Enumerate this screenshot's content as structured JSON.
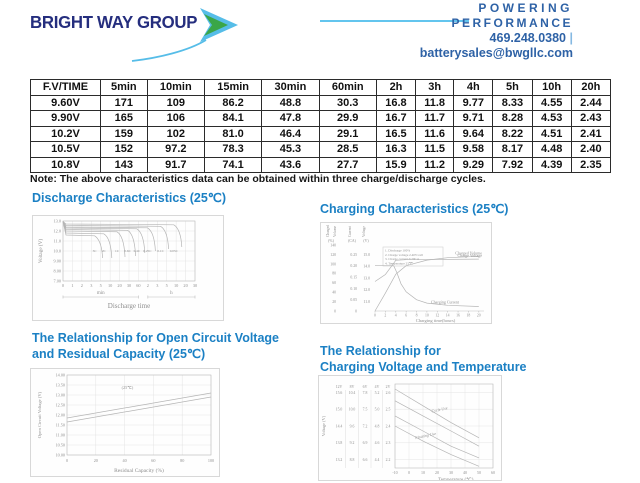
{
  "header": {
    "logo_text": "BRIGHT WAY GROUP",
    "tagline_line1": "POWERING",
    "tagline_line2": "PERFORMANCE",
    "phone": "469.248.0380",
    "pipe": "|",
    "email": "batterysales@bwgllc.com",
    "colors": {
      "logo_navy": "#252e7e",
      "chevron_blue": "#56bde8",
      "chevron_green": "#3aa648",
      "text_blue": "#2e62a6",
      "rule_blue": "#63c5ee"
    }
  },
  "table": {
    "headers": [
      "F.V/TIME",
      "5min",
      "10min",
      "15min",
      "30min",
      "60min",
      "2h",
      "3h",
      "4h",
      "5h",
      "10h",
      "20h"
    ],
    "rows": [
      [
        "9.60V",
        "171",
        "109",
        "86.2",
        "48.8",
        "30.3",
        "16.8",
        "11.8",
        "9.77",
        "8.33",
        "4.55",
        "2.44"
      ],
      [
        "9.90V",
        "165",
        "106",
        "84.1",
        "47.8",
        "29.9",
        "16.7",
        "11.7",
        "9.71",
        "8.28",
        "4.53",
        "2.43"
      ],
      [
        "10.2V",
        "159",
        "102",
        "81.0",
        "46.4",
        "29.1",
        "16.5",
        "11.6",
        "9.64",
        "8.22",
        "4.51",
        "2.41"
      ],
      [
        "10.5V",
        "152",
        "97.2",
        "78.3",
        "45.3",
        "28.5",
        "16.3",
        "11.5",
        "9.58",
        "8.17",
        "4.48",
        "2.40"
      ],
      [
        "10.8V",
        "143",
        "91.7",
        "74.1",
        "43.6",
        "27.7",
        "15.9",
        "11.2",
        "9.29",
        "7.92",
        "4.39",
        "2.35"
      ]
    ]
  },
  "note": "Note: The above characteristics data can be obtained within three charge/discharge cycles.",
  "section_titles": {
    "discharge": "Discharge Characteristics (25℃)",
    "charging": "Charging Characteristics (25℃)",
    "ocv_line1": "The Relationship for Open Circuit Voltage",
    "ocv_line2": "and Residual Capacity (25℃)",
    "temp_line1": "The Relationship for",
    "temp_line2": "Charging Voltage and Temperature"
  },
  "chart_data": [
    {
      "id": "discharge",
      "type": "line",
      "title": "Discharge Characteristics (25℃)",
      "xlabel": "Discharge time",
      "ylabel": "Voltage (V)",
      "ytick_labels": [
        "13.0",
        "12.0",
        "11.0",
        "10.0",
        "9.00",
        "8.00",
        "7.00"
      ],
      "yticks": [
        13.0,
        12.0,
        11.0,
        10.0,
        9.0,
        8.0,
        7.0
      ],
      "xtick_labels": [
        "0",
        "1",
        "2",
        "3",
        "5",
        "10",
        "20",
        "30",
        "60",
        "2",
        "3",
        "5",
        "10",
        "20",
        "30"
      ],
      "x_units": [
        {
          "label": "min",
          "from_tick": 0,
          "to_tick": 8
        },
        {
          "label": "h",
          "from_tick": 9,
          "to_tick": 14
        }
      ],
      "series": [
        {
          "name": "3C",
          "plateau_v": 11.6,
          "end_fraction": 0.3,
          "end_v": 9.3
        },
        {
          "name": "2C",
          "plateau_v": 11.8,
          "end_fraction": 0.37,
          "end_v": 9.3
        },
        {
          "name": "1C",
          "plateau_v": 12.0,
          "end_fraction": 0.47,
          "end_v": 9.4
        },
        {
          "name": "0.6C",
          "plateau_v": 12.15,
          "end_fraction": 0.55,
          "end_v": 9.5
        },
        {
          "name": "0.4C",
          "plateau_v": 12.3,
          "end_fraction": 0.62,
          "end_v": 9.8
        },
        {
          "name": "0.25C",
          "plateau_v": 12.4,
          "end_fraction": 0.7,
          "end_v": 10.0
        },
        {
          "name": "0.1C",
          "plateau_v": 12.55,
          "end_fraction": 0.8,
          "end_v": 10.2
        },
        {
          "name": "0.05C",
          "plateau_v": 12.7,
          "end_fraction": 0.9,
          "end_v": 10.4
        }
      ]
    },
    {
      "id": "charging",
      "type": "line",
      "title": "Charging Characteristics (25℃)",
      "xlabel": "Charging time(hours)",
      "xticks": [
        0,
        2,
        4,
        6,
        8,
        10,
        12,
        14,
        16,
        18,
        20
      ],
      "axes": [
        {
          "name": "Charged Volume",
          "unit": "(%)",
          "ticks": [
            "140",
            "120",
            "100",
            "80",
            "60",
            "40",
            "20",
            "0"
          ]
        },
        {
          "name": "Current",
          "unit": "(CA)",
          "ticks": [
            "0.25",
            "0.20",
            "0.15",
            "0.10",
            "0.05",
            "0"
          ]
        },
        {
          "name": "Voltage",
          "unit": "(V)",
          "ticks": [
            "15.0",
            "14.0",
            "13.0",
            "12.0",
            "11.0"
          ]
        }
      ],
      "legend": [
        "1. Discharge 100%",
        "2. Charge voltage 2.40V/cell",
        "3. Charge current 0.20CA",
        "4. Temperature 25℃"
      ],
      "series": [
        {
          "name": "Charged Volume",
          "axis": "%",
          "points": [
            [
              0,
              0
            ],
            [
              2,
              38
            ],
            [
              4,
              78
            ],
            [
              6,
              96
            ],
            [
              10,
              108
            ],
            [
              14,
              113
            ],
            [
              20,
              116
            ]
          ]
        },
        {
          "name": "Charge Voltage",
          "axis": "V",
          "points": [
            [
              0,
              12.7
            ],
            [
              2,
              13.3
            ],
            [
              3.5,
              14.2
            ],
            [
              4,
              14.5
            ],
            [
              6,
              14.55
            ],
            [
              20,
              14.6
            ]
          ]
        },
        {
          "name": "Charging Current",
          "axis": "CA",
          "points": [
            [
              0,
              0.2
            ],
            [
              3.6,
              0.2
            ],
            [
              4.2,
              0.17
            ],
            [
              5,
              0.12
            ],
            [
              6,
              0.085
            ],
            [
              8,
              0.05
            ],
            [
              10,
              0.035
            ],
            [
              14,
              0.025
            ],
            [
              20,
              0.02
            ]
          ]
        }
      ]
    },
    {
      "id": "ocv",
      "type": "line",
      "title": "The Relationship for Open Circuit Voltage and Residual Capacity (25℃)",
      "xlabel": "Residual Capacity (%)",
      "ylabel": "Open Circuit Voltage (V)",
      "annotation": "(25℃)",
      "ytick_labels": [
        "14.00",
        "13.50",
        "13.00",
        "12.50",
        "12.00",
        "11.50",
        "11.00",
        "10.50",
        "10.00"
      ],
      "xtick_labels": [
        "0",
        "20",
        "40",
        "60",
        "80",
        "100"
      ],
      "xlim": [
        0,
        100
      ],
      "ylim": [
        10.0,
        14.0
      ],
      "series": [
        {
          "name": "upper line",
          "points": [
            [
              0,
              11.85
            ],
            [
              100,
              13.1
            ]
          ]
        },
        {
          "name": "lower line",
          "points": [
            [
              0,
              11.65
            ],
            [
              100,
              12.9
            ]
          ]
        }
      ]
    },
    {
      "id": "charge-temp",
      "type": "line",
      "title": "The Relationship for Charging Voltage and Temperature",
      "xlabel": "Temperature (℃)",
      "ylabel": "Voltage (V)",
      "scale_headers": [
        "12V",
        "8V",
        "6V",
        "4V",
        "2V"
      ],
      "scale_rows": [
        [
          "15.6",
          "10.4",
          "7.8",
          "5.2",
          "2.6"
        ],
        [
          "15.0",
          "10.0",
          "7.5",
          "5.0",
          "2.5"
        ],
        [
          "14.4",
          "9.6",
          "7.2",
          "4.8",
          "2.4"
        ],
        [
          "13.8",
          "9.2",
          "6.9",
          "4.6",
          "2.3"
        ],
        [
          "13.2",
          "8.8",
          "6.6",
          "4.4",
          "2.2"
        ]
      ],
      "xtick_labels": [
        "-10",
        "0",
        "10",
        "20",
        "30",
        "40",
        "50",
        "60"
      ],
      "xlim": [
        -10,
        60
      ],
      "y_range_2v": [
        2.15,
        2.65
      ],
      "bands": [
        {
          "name": "Cycle Use",
          "lines": [
            [
              [
                -10,
                2.62
              ],
              [
                10,
                2.52
              ],
              [
                30,
                2.42
              ],
              [
                50,
                2.33
              ]
            ],
            [
              [
                -10,
                2.55
              ],
              [
                10,
                2.46
              ],
              [
                30,
                2.37
              ],
              [
                50,
                2.28
              ]
            ]
          ]
        },
        {
          "name": "Floating Use",
          "lines": [
            [
              [
                -10,
                2.46
              ],
              [
                10,
                2.37
              ],
              [
                30,
                2.28
              ],
              [
                50,
                2.21
              ]
            ],
            [
              [
                -10,
                2.4
              ],
              [
                10,
                2.31
              ],
              [
                30,
                2.23
              ],
              [
                50,
                2.16
              ]
            ]
          ]
        }
      ]
    }
  ]
}
